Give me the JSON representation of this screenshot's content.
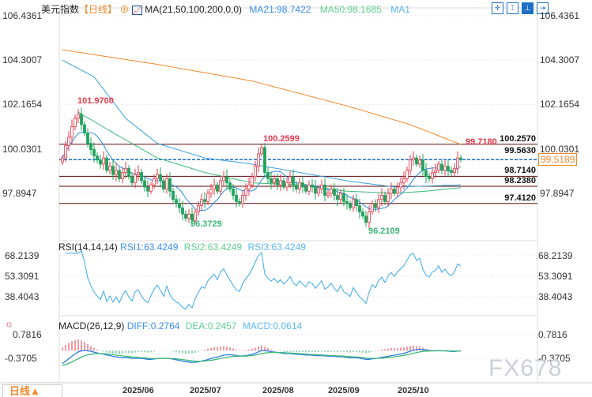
{
  "header": {
    "title": "美元指数",
    "period": "【日线】",
    "ma_label": "MA(21,50,100,200,0,0)",
    "ma21": "MA21:98.7422",
    "ma50": "MA50:98.1685",
    "ma1": "MA1"
  },
  "tools": [
    "crosshair-icon",
    "range-icon",
    "measure-icon",
    "exit-icon"
  ],
  "price_axis": {
    "ticks": [
      "106.4361",
      "104.3007",
      "102.1654",
      "100.0301",
      "97.8947"
    ],
    "current": "99.5189"
  },
  "annotations": {
    "high": "101.9700",
    "mid_high": "100.2599",
    "low1": "96.3729",
    "low2": "96.2109",
    "last_high": "99.7180"
  },
  "levels": [
    "100.2570",
    "99.5630",
    "98.7140",
    "98.2380",
    "97.4120"
  ],
  "rsi": {
    "label": "RSI(14,14,14)",
    "rsi1": "RSI1:63.4249",
    "rsi2": "RSI2:63.4249",
    "rsi3": "RSI3:63.4249",
    "ticks": [
      "68.2139",
      "53.3091",
      "38.4043"
    ]
  },
  "macd": {
    "label": "MACD(26,12,9)",
    "diff": "DIFF:0.2764",
    "dea": "DEA:0.2457",
    "macd": "MACD:0.0614",
    "ticks": [
      "0.7816",
      "-0.3705"
    ]
  },
  "months": [
    "2025/06",
    "2025/07",
    "2025/08",
    "2025/09",
    "2025/10"
  ],
  "footer": {
    "period_button": "日线▲"
  },
  "watermark": "FX678",
  "colors": {
    "up": "#e8394a",
    "down": "#1fa35c",
    "ma21": "#2a8de0",
    "ma50": "#3cb878",
    "ma100": "#3aa0e0",
    "ma200": "#f08a2c",
    "level": "#5a0a0a"
  },
  "chart_data": {
    "type": "candlestick",
    "closes": [
      99.6,
      100.2,
      100.6,
      101.1,
      101.5,
      101.7,
      101.2,
      100.8,
      100.3,
      100.0,
      99.7,
      99.5,
      99.3,
      99.6,
      99.0,
      99.2,
      98.8,
      99.0,
      98.6,
      98.9,
      99.1,
      98.7,
      98.4,
      98.8,
      98.9,
      98.5,
      98.2,
      98.0,
      98.3,
      98.6,
      98.8,
      98.5,
      98.1,
      98.6,
      98.0,
      97.6,
      97.4,
      97.2,
      96.9,
      96.7,
      96.9,
      96.6,
      97.0,
      97.3,
      97.6,
      97.5,
      97.9,
      98.1,
      98.3,
      98.0,
      98.5,
      98.7,
      98.4,
      98.1,
      97.8,
      97.5,
      97.4,
      97.8,
      98.1,
      98.3,
      98.7,
      99.2,
      99.8,
      100.1,
      98.9,
      98.6,
      98.4,
      98.6,
      98.3,
      98.5,
      98.2,
      98.4,
      98.7,
      98.3,
      98.1,
      98.4,
      98.2,
      98.0,
      98.3,
      98.2,
      97.9,
      98.1,
      98.3,
      97.8,
      97.9,
      98.1,
      97.8,
      97.6,
      97.9,
      97.5,
      97.4,
      97.2,
      97.6,
      97.3,
      97.0,
      96.8,
      96.5,
      97.0,
      97.4,
      97.2,
      97.6,
      97.8,
      97.5,
      97.9,
      98.1,
      97.9,
      98.2,
      98.4,
      98.6,
      99.0,
      99.5,
      99.6,
      99.3,
      99.5,
      99.0,
      98.7,
      98.6,
      98.9,
      99.0,
      99.3,
      99.0,
      99.2,
      99.0,
      98.9,
      99.1,
      99.6,
      99.52
    ],
    "ma200": [
      [
        0,
        104.8
      ],
      [
        30,
        104.1
      ],
      [
        60,
        103.3
      ],
      [
        90,
        102.1
      ],
      [
        110,
        101.2
      ],
      [
        126,
        100.25
      ]
    ],
    "ma100": [
      [
        0,
        104.3
      ],
      [
        10,
        103.5
      ],
      [
        20,
        101.5
      ],
      [
        30,
        100.3
      ],
      [
        45,
        99.6
      ],
      [
        60,
        99.3
      ],
      [
        75,
        98.9
      ],
      [
        90,
        98.5
      ],
      [
        105,
        98.2
      ],
      [
        126,
        98.3
      ]
    ],
    "ma50": [
      [
        5,
        101.8
      ],
      [
        15,
        100.9
      ],
      [
        30,
        99.6
      ],
      [
        45,
        98.9
      ],
      [
        60,
        98.4
      ],
      [
        75,
        98.3
      ],
      [
        90,
        98.0
      ],
      [
        105,
        97.9
      ],
      [
        115,
        98.0
      ],
      [
        126,
        98.17
      ]
    ],
    "price_range": [
      95.0,
      107.0
    ]
  }
}
